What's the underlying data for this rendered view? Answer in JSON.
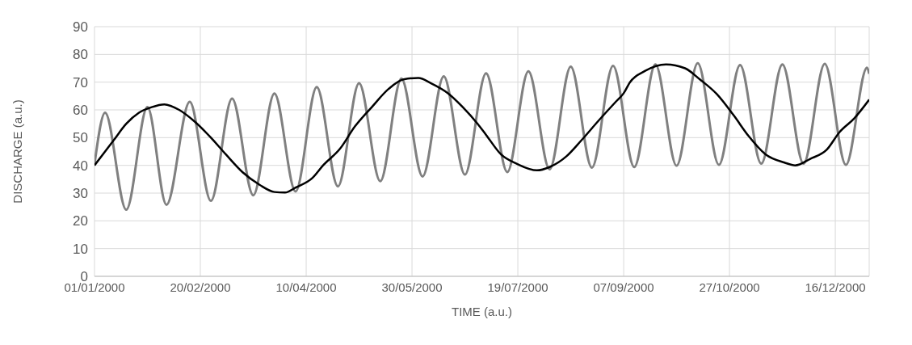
{
  "chart_data": {
    "type": "line",
    "xlabel": "TIME (a.u.)",
    "ylabel": "DISCHARGE (a.u.)",
    "xlim": [
      "2000-01-01",
      "2001-01-01"
    ],
    "xticks": [
      {
        "value": "2000-01-01",
        "label": "01/01/2000"
      },
      {
        "value": "2000-02-20",
        "label": "20/02/2000"
      },
      {
        "value": "2000-04-10",
        "label": "10/04/2000"
      },
      {
        "value": "2000-05-30",
        "label": "30/05/2000"
      },
      {
        "value": "2000-07-19",
        "label": "19/07/2000"
      },
      {
        "value": "2000-09-07",
        "label": "07/09/2000"
      },
      {
        "value": "2000-10-27",
        "label": "27/10/2000"
      },
      {
        "value": "2000-12-16",
        "label": "16/12/2000"
      }
    ],
    "ylim": [
      0,
      90
    ],
    "yticks": [
      0,
      10,
      20,
      30,
      40,
      50,
      60,
      70,
      80,
      90
    ],
    "grid": true,
    "legend": false,
    "marker": "none",
    "line_style": "solid",
    "series": [
      {
        "color": "#808080",
        "x": [
          "2000-01-01",
          "2000-01-06",
          "2000-01-16",
          "2000-01-26",
          "2000-02-04",
          "2000-02-15",
          "2000-02-25",
          "2000-03-06",
          "2000-03-16",
          "2000-03-26",
          "2000-04-05",
          "2000-04-15",
          "2000-04-25",
          "2000-05-05",
          "2000-05-15",
          "2000-05-25",
          "2000-06-04",
          "2000-06-14",
          "2000-06-24",
          "2000-07-04",
          "2000-07-14",
          "2000-07-24",
          "2000-08-03",
          "2000-08-13",
          "2000-08-23",
          "2000-09-02",
          "2000-09-12",
          "2000-09-22",
          "2000-10-02",
          "2000-10-12",
          "2000-10-22",
          "2000-11-01",
          "2000-11-11",
          "2000-11-21",
          "2000-12-01",
          "2000-12-11",
          "2000-12-21",
          "2000-12-31",
          "2001-01-01"
        ],
        "values": [
          40.4,
          59,
          24,
          61,
          25.8,
          62.9,
          27.2,
          64.1,
          29.2,
          65.9,
          30.6,
          68.2,
          32.4,
          69.6,
          34.3,
          71.3,
          36,
          72.1,
          36.7,
          73.2,
          37.6,
          73.9,
          38.6,
          75.6,
          39.2,
          75.9,
          39.4,
          76.4,
          39.9,
          76.8,
          40.2,
          76.2,
          40.6,
          76.4,
          40.6,
          76.6,
          40.2,
          75.2,
          73
        ]
      },
      {
        "color": "#000000",
        "x": [
          "2000-01-01",
          "2000-01-06",
          "2000-01-10",
          "2000-01-16",
          "2000-01-22",
          "2000-01-28",
          "2000-02-03",
          "2000-02-10",
          "2000-02-17",
          "2000-02-25",
          "2000-03-03",
          "2000-03-11",
          "2000-03-19",
          "2000-03-26",
          "2000-03-31",
          "2000-04-05",
          "2000-04-13",
          "2000-04-18",
          "2000-04-26",
          "2000-05-03",
          "2000-05-11",
          "2000-05-19",
          "2000-05-26",
          "2000-06-02",
          "2000-06-08",
          "2000-06-16",
          "2000-06-23",
          "2000-06-30",
          "2000-07-04",
          "2000-07-11",
          "2000-07-19",
          "2000-07-28",
          "2000-08-03",
          "2000-08-11",
          "2000-08-18",
          "2000-08-26",
          "2000-09-03",
          "2000-09-07",
          "2000-09-10",
          "2000-09-17",
          "2000-09-27",
          "2000-10-06",
          "2000-10-13",
          "2000-10-21",
          "2000-10-29",
          "2000-11-05",
          "2000-11-13",
          "2000-11-22",
          "2000-11-27",
          "2000-12-04",
          "2000-12-12",
          "2000-12-18",
          "2000-12-25",
          "2001-01-01"
        ],
        "values": [
          40,
          45,
          49,
          55,
          59,
          61,
          62,
          60,
          56,
          50,
          44,
          37.5,
          33,
          30.4,
          30.2,
          32,
          35.5,
          40,
          46,
          54,
          61,
          67.6,
          71,
          71.5,
          69.6,
          66,
          61,
          55,
          51,
          44,
          40.4,
          38.2,
          39.4,
          43.3,
          49,
          56,
          62.7,
          66,
          70,
          74,
          76.4,
          75,
          71,
          65.7,
          58,
          50.6,
          44,
          41,
          40,
          42.3,
          45.7,
          52,
          57,
          63.7
        ]
      }
    ]
  }
}
